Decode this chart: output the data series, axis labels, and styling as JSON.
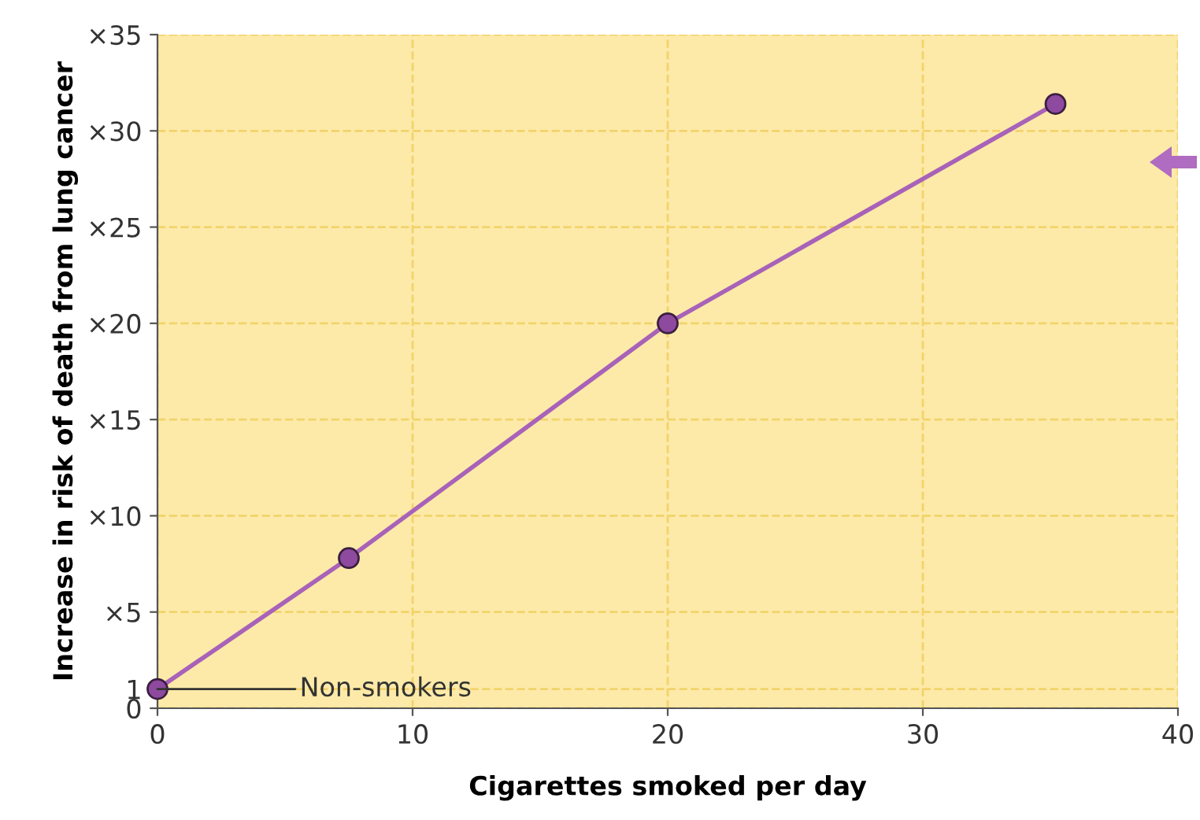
{
  "chart_data": {
    "type": "line",
    "xlabel": "Cigarettes smoked per day",
    "ylabel": "Increase in risk of death from lung cancer",
    "x": [
      0,
      7.5,
      20,
      35.2
    ],
    "series": [
      {
        "color": "#a862b8",
        "values": [
          1,
          7.8,
          20,
          31.4
        ]
      }
    ],
    "xlim": [
      0,
      40
    ],
    "xticks": [
      0,
      10,
      20,
      30,
      40
    ],
    "ylim": [
      0,
      35
    ],
    "yticks": [
      0,
      1,
      {
        "value": 5,
        "label": "×5"
      },
      {
        "value": 10,
        "label": "×10"
      },
      {
        "value": 15,
        "label": "×15"
      },
      {
        "value": 20,
        "label": "×20"
      },
      {
        "value": 25,
        "label": "×25"
      },
      {
        "value": 30,
        "label": "×30"
      },
      {
        "value": 35,
        "label": "×35"
      }
    ],
    "grid": true,
    "marker": "circle",
    "line_style": "solid",
    "annotations": [
      {
        "text": "Non-smokers",
        "x": 0,
        "y": 1
      }
    ]
  }
}
